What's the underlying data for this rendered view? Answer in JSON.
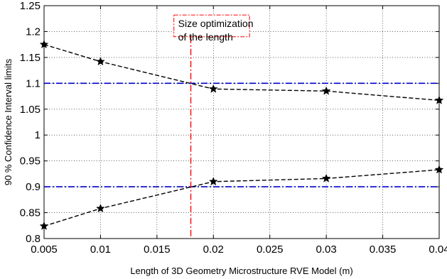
{
  "chart_data": {
    "type": "line",
    "xlabel": "Length of 3D Geometry Microstructure RVE Model (m)",
    "ylabel": "90 % Confidence Interval  limits",
    "xlim": [
      0.005,
      0.04
    ],
    "ylim": [
      0.8,
      1.25
    ],
    "xticks": [
      "0.005",
      "0.01",
      "0.015",
      "0.02",
      "0.025",
      "0.03",
      "0.035",
      "0.04"
    ],
    "yticks": [
      "0.8",
      "0.85",
      "0.9",
      "0.95",
      "1",
      "1.05",
      "1.1",
      "1.15",
      "1.2",
      "1.25"
    ],
    "grid": true,
    "series": [
      {
        "name": "",
        "style": "dashed",
        "marker": "star",
        "color": "#000000",
        "x": [
          0.005,
          0.01,
          0.02,
          0.03,
          0.04
        ],
        "y": [
          1.175,
          1.142,
          1.089,
          1.085,
          1.067
        ]
      },
      {
        "name": "",
        "style": "dashed",
        "marker": "star",
        "color": "#000000",
        "x": [
          0.005,
          0.01,
          0.02,
          0.03,
          0.04
        ],
        "y": [
          0.824,
          0.858,
          0.91,
          0.916,
          0.933
        ]
      }
    ],
    "hlines": [
      {
        "y": 1.1,
        "color": "#0000cc",
        "style": "dashdot"
      },
      {
        "y": 0.9,
        "color": "#0000cc",
        "style": "dashdot"
      }
    ],
    "vline": {
      "x": 0.018,
      "color": "#ff0000",
      "style": "dashdot"
    },
    "annotation": {
      "lines": [
        "Size optimization",
        "of the length"
      ],
      "box_color": "#ff0000"
    }
  }
}
